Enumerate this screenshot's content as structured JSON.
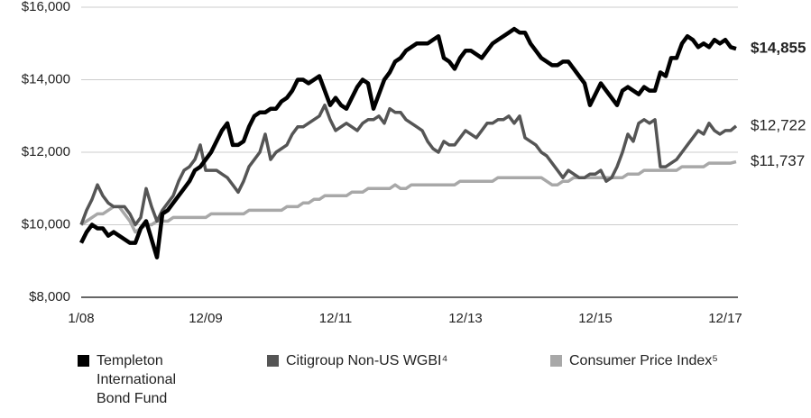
{
  "chart_data": {
    "type": "line",
    "categories": [
      "1/08",
      null,
      null,
      null,
      null,
      null,
      null,
      null,
      null,
      null,
      null,
      null,
      null,
      null,
      null,
      null,
      null,
      null,
      null,
      null,
      null,
      null,
      null,
      "12/09",
      null,
      null,
      null,
      null,
      null,
      null,
      null,
      null,
      null,
      null,
      null,
      null,
      null,
      null,
      null,
      null,
      null,
      null,
      null,
      null,
      null,
      null,
      null,
      "12/11",
      null,
      null,
      null,
      null,
      null,
      null,
      null,
      null,
      null,
      null,
      null,
      null,
      null,
      null,
      null,
      null,
      null,
      null,
      null,
      null,
      null,
      null,
      null,
      "12/13",
      null,
      null,
      null,
      null,
      null,
      null,
      null,
      null,
      null,
      null,
      null,
      null,
      null,
      null,
      null,
      null,
      null,
      null,
      null,
      null,
      null,
      null,
      null,
      "12/15",
      null,
      null,
      null,
      null,
      null,
      null,
      null,
      null,
      null,
      null,
      null,
      null,
      null,
      null,
      null,
      null,
      null,
      null,
      null,
      null,
      null,
      null,
      null,
      "12/17",
      null,
      null
    ],
    "series": [
      {
        "name": "Templeton International Bond Fund",
        "color": "#000000",
        "values": [
          9500,
          9800,
          10000,
          9900,
          9900,
          9700,
          9800,
          9700,
          9600,
          9500,
          9500,
          9900,
          10100,
          9600,
          9100,
          10300,
          10400,
          10600,
          10800,
          11000,
          11200,
          11500,
          11600,
          11800,
          12000,
          12300,
          12600,
          12800,
          12200,
          12200,
          12300,
          12700,
          13000,
          13100,
          13100,
          13200,
          13200,
          13400,
          13500,
          13700,
          14000,
          14000,
          13900,
          14000,
          14100,
          13700,
          13300,
          13500,
          13300,
          13200,
          13500,
          13800,
          14000,
          13900,
          13200,
          13600,
          14000,
          14200,
          14500,
          14600,
          14800,
          14900,
          15000,
          15000,
          15000,
          15100,
          15200,
          14600,
          14500,
          14300,
          14600,
          14800,
          14800,
          14700,
          14600,
          14800,
          15000,
          15100,
          15200,
          15300,
          15400,
          15300,
          15300,
          15000,
          14800,
          14600,
          14500,
          14400,
          14400,
          14500,
          14500,
          14300,
          14100,
          13900,
          13300,
          13600,
          13900,
          13700,
          13500,
          13300,
          13700,
          13800,
          13700,
          13600,
          13800,
          13700,
          13700,
          14200,
          14100,
          14600,
          14600,
          15000,
          15200,
          15100,
          14900,
          15000,
          14900,
          15100,
          15000,
          15100,
          14900,
          14855
        ],
        "value_labels": {
          "121": "$14,855"
        }
      },
      {
        "name": "Citigroup Non-US WGBI⁴",
        "color": "#555555",
        "values": [
          10000,
          10400,
          10700,
          11100,
          10800,
          10600,
          10500,
          10500,
          10500,
          10300,
          10000,
          10200,
          11000,
          10500,
          10100,
          10400,
          10600,
          10800,
          11200,
          11500,
          11600,
          11800,
          12200,
          11500,
          11500,
          11500,
          11400,
          11300,
          11100,
          10900,
          11200,
          11600,
          11800,
          12000,
          12500,
          11800,
          12000,
          12100,
          12200,
          12500,
          12700,
          12700,
          12800,
          12900,
          13000,
          13300,
          12900,
          12600,
          12700,
          12800,
          12700,
          12600,
          12800,
          12900,
          12900,
          13000,
          12800,
          13200,
          13100,
          13100,
          12900,
          12800,
          12700,
          12600,
          12300,
          12100,
          12000,
          12300,
          12200,
          12200,
          12400,
          12600,
          12500,
          12400,
          12600,
          12800,
          12800,
          12900,
          12900,
          13000,
          12800,
          13000,
          12400,
          12300,
          12200,
          12000,
          11900,
          11700,
          11500,
          11300,
          11500,
          11400,
          11300,
          11300,
          11400,
          11400,
          11500,
          11200,
          11300,
          11600,
          12000,
          12500,
          12300,
          12800,
          12900,
          12800,
          12900,
          11600,
          11600,
          11700,
          11800,
          12000,
          12200,
          12400,
          12600,
          12500,
          12800,
          12600,
          12500,
          12600,
          12600,
          12722
        ],
        "value_labels": {
          "121": "$12,722"
        }
      },
      {
        "name": "Consumer Price Index⁵",
        "color": "#a8a8a8",
        "values": [
          10000,
          10100,
          10200,
          10300,
          10300,
          10400,
          10500,
          10500,
          10300,
          10100,
          9800,
          9900,
          10000,
          10000,
          10100,
          10100,
          10100,
          10200,
          10200,
          10200,
          10200,
          10200,
          10200,
          10200,
          10300,
          10300,
          10300,
          10300,
          10300,
          10300,
          10300,
          10400,
          10400,
          10400,
          10400,
          10400,
          10400,
          10400,
          10500,
          10500,
          10500,
          10600,
          10600,
          10700,
          10700,
          10800,
          10800,
          10800,
          10800,
          10800,
          10900,
          10900,
          10900,
          11000,
          11000,
          11000,
          11000,
          11000,
          11100,
          11000,
          11000,
          11100,
          11100,
          11100,
          11100,
          11100,
          11100,
          11100,
          11100,
          11100,
          11200,
          11200,
          11200,
          11200,
          11200,
          11200,
          11200,
          11300,
          11300,
          11300,
          11300,
          11300,
          11300,
          11300,
          11300,
          11300,
          11200,
          11100,
          11100,
          11200,
          11200,
          11300,
          11300,
          11300,
          11300,
          11300,
          11300,
          11300,
          11300,
          11300,
          11300,
          11400,
          11400,
          11400,
          11500,
          11500,
          11500,
          11500,
          11500,
          11500,
          11500,
          11600,
          11600,
          11600,
          11600,
          11600,
          11700,
          11700,
          11700,
          11700,
          11700,
          11737
        ],
        "value_labels": {
          "121": "$11,737"
        }
      }
    ],
    "ylim": [
      8000,
      16000
    ],
    "yticks": [
      {
        "value": 8000,
        "label": "$8,000"
      },
      {
        "value": 10000,
        "label": "$10,000"
      },
      {
        "value": 12000,
        "label": "$12,000"
      },
      {
        "value": 14000,
        "label": "$14,000"
      },
      {
        "value": 16000,
        "label": "$16,000"
      }
    ],
    "grid": true
  }
}
